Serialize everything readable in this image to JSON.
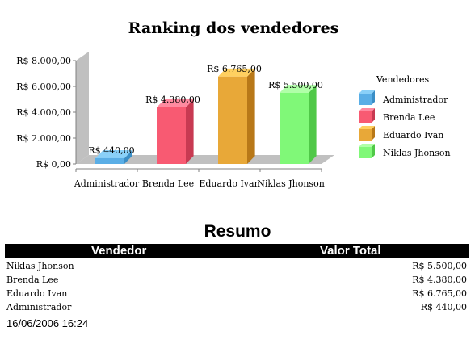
{
  "chart_data": {
    "type": "bar",
    "title": "Ranking dos vendedores",
    "categories": [
      "Administrador",
      "Brenda Lee",
      "Eduardo Ivan",
      "Niklas Jhonson"
    ],
    "values": [
      440,
      4380,
      6765,
      5500
    ],
    "value_labels": [
      "R$ 440,00",
      "R$ 4.380,00",
      "R$ 6.765,00",
      "R$ 5.500,00"
    ],
    "ylim": [
      0,
      8000
    ],
    "yticks": [
      0,
      2000,
      4000,
      6000,
      8000
    ],
    "ytick_labels": [
      "R$ 0,00",
      "R$ 2.000,00",
      "R$ 4.000,00",
      "R$ 6.000,00",
      "R$ 8.000,00"
    ],
    "legend_title": "Vendedores",
    "legend_position": "right",
    "grid": false,
    "colors": [
      "#5aaee6",
      "#f85a72",
      "#e8a838",
      "#80f878"
    ],
    "dark_colors": [
      "#3a8ec6",
      "#c83a52",
      "#b87818",
      "#50c848"
    ],
    "light_colors": [
      "#8ad0f8",
      "#ff8aa0",
      "#ffd060",
      "#b0ffa8"
    ]
  },
  "resumo": {
    "title": "Resumo",
    "header_vendedor": "Vendedor",
    "header_valor": "Valor Total",
    "rows": [
      {
        "name": "Niklas Jhonson",
        "value": "R$ 5.500,00"
      },
      {
        "name": "Brenda Lee",
        "value": "R$ 4.380,00"
      },
      {
        "name": "Eduardo Ivan",
        "value": "R$ 6.765,00"
      },
      {
        "name": "Administrador",
        "value": "R$ 440,00"
      }
    ],
    "timestamp": "16/06/2006 16:24"
  }
}
